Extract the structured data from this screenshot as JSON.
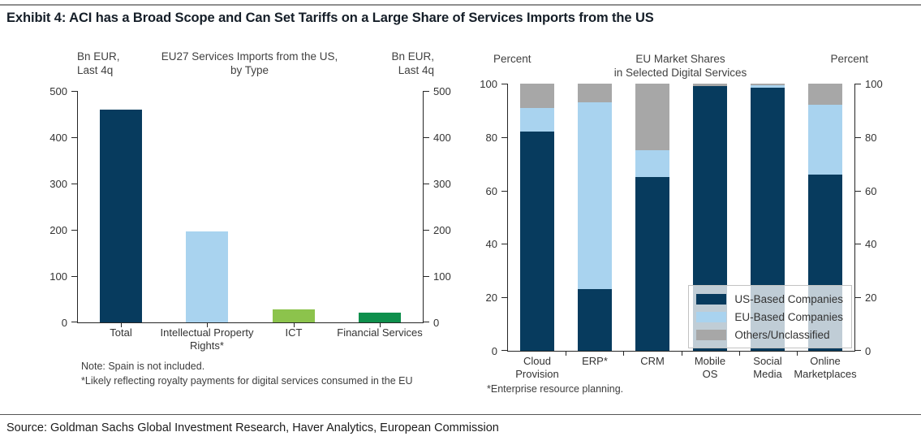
{
  "title": "Exhibit 4: ACI has a Broad Scope and Can Set Tariffs on a Large Share of Services Imports from the US",
  "source": "Source: Goldman Sachs Global Investment Research, Haver Analytics, European Commission",
  "colors": {
    "navy": "#073B5E",
    "light_blue": "#A9D3EF",
    "light_green": "#8CC34C",
    "dark_green": "#0E8F4C",
    "gray": "#A7A7A7",
    "axis": "#262626"
  },
  "chart_data": [
    {
      "type": "bar",
      "title": "EU27 Services Imports from the US,\nby Type",
      "y_axis_label_left": "Bn EUR,\nLast 4q",
      "y_axis_label_right": "Bn EUR,\nLast 4q",
      "categories": [
        "Total",
        "Intellectual Property\nRights*",
        "ICT",
        "Financial Services"
      ],
      "values": [
        460,
        197,
        28,
        21
      ],
      "bar_colors": [
        "#073B5E",
        "#A9D3EF",
        "#8CC34C",
        "#0E8F4C"
      ],
      "ylim": [
        0,
        500
      ],
      "yticks": [
        0,
        100,
        200,
        300,
        400,
        500
      ],
      "grid": false,
      "notes": {
        "0": "Note: Spain is not included.",
        "1": "*Likely reflecting royalty payments for digital services consumed in the EU"
      }
    },
    {
      "type": "bar",
      "stacked": true,
      "title": "EU Market Shares\nin Selected Digital Services",
      "y_axis_label_left": "Percent",
      "y_axis_label_right": "Percent",
      "categories": [
        "Cloud\nProvision",
        "ERP*",
        "CRM",
        "Mobile\nOS",
        "Social\nMedia",
        "Online\nMarketplaces"
      ],
      "series": [
        {
          "name": "US-Based Companies",
          "color": "#073B5E",
          "values": [
            82,
            23,
            65,
            99,
            98.5,
            66
          ]
        },
        {
          "name": "EU-Based Companies",
          "color": "#A9D3EF",
          "values": [
            9,
            70,
            10,
            0,
            1,
            26
          ]
        },
        {
          "name": "Others/Unclassified",
          "color": "#A7A7A7",
          "values": [
            9,
            7,
            25,
            1,
            0.5,
            8
          ]
        }
      ],
      "ylim": [
        0,
        100
      ],
      "yticks": [
        0,
        20,
        40,
        60,
        80,
        100
      ],
      "grid": false,
      "legend_position": "inside-bottom-right",
      "notes": {
        "0": "*Enterprise resource planning."
      }
    }
  ]
}
